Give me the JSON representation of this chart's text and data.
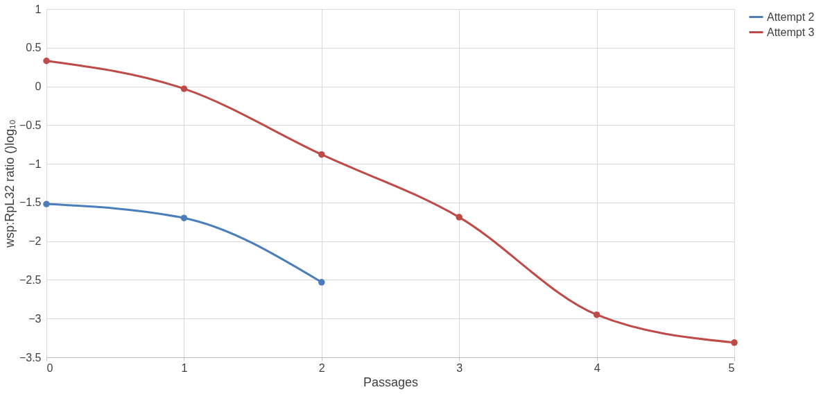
{
  "chart_data": {
    "type": "line",
    "xlabel": "Passages",
    "ylabel": "wsp:RpL32 ratio ()log₁₀",
    "x": [
      0,
      1,
      2,
      3,
      4,
      5
    ],
    "series": [
      {
        "name": "Attempt 2",
        "color": "#4a7ebb",
        "values": [
          -1.52,
          -1.7,
          -2.53,
          null,
          null,
          null
        ]
      },
      {
        "name": "Attempt 3",
        "color": "#be4b48",
        "values": [
          0.33,
          -0.03,
          -0.88,
          -1.69,
          -2.95,
          -3.31
        ]
      }
    ],
    "xlim": [
      0,
      5
    ],
    "xticks": [
      0,
      1,
      2,
      3,
      4,
      5
    ],
    "ylim": [
      -3.5,
      1
    ],
    "yticks": [
      -3.5,
      -3,
      -2.5,
      -2,
      -1.5,
      -1,
      -0.5,
      0,
      0.5,
      1
    ],
    "grid": true,
    "legend": "right",
    "marker": "circle",
    "line_style": "solid"
  }
}
